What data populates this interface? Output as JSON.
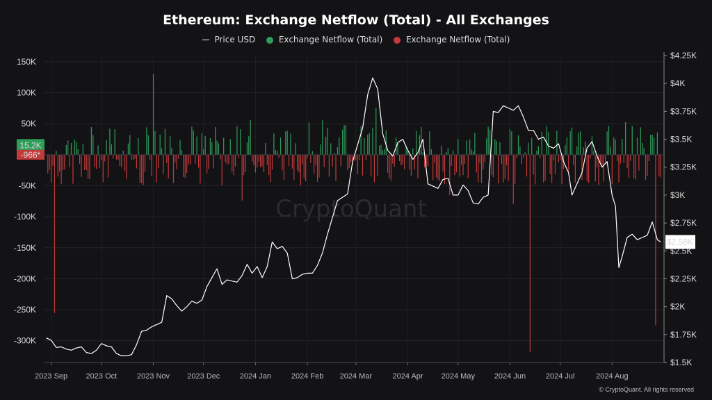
{
  "title": "Ethereum: Exchange Netflow (Total) - All Exchanges",
  "legend": [
    {
      "label": "Price USD",
      "marker": "line",
      "color": "#ffffff"
    },
    {
      "label": "Exchange Netflow (Total)",
      "marker": "dot",
      "color": "#2e9e58"
    },
    {
      "label": "Exchange Netflow (Total)",
      "marker": "dot",
      "color": "#c43a3a"
    }
  ],
  "watermark": "CryptoQuant",
  "copyright": "© CryptoQuant. All rights reserved",
  "chart_data": {
    "type": "bar+line",
    "x_ticks": [
      "2023 Sep",
      "2023 Oct",
      "2023 Nov",
      "2023 Dec",
      "2024 Jan",
      "2024 Feb",
      "2024 Mar",
      "2024 Apr",
      "2024 May",
      "2024 Jun",
      "2024 Jul",
      "2024 Aug"
    ],
    "left_axis": {
      "label": "Exchange Netflow (Total)",
      "ticks": [
        "150K",
        "100K",
        "50K",
        "0",
        "-50K",
        "-100K",
        "-150K",
        "-200K",
        "-250K",
        "-300K"
      ],
      "ylim": [
        -335000,
        160000
      ]
    },
    "right_axis": {
      "label": "Price USD",
      "ticks": [
        "$4.25K",
        "$4K",
        "$3.75K",
        "$3.5K",
        "$3.25K",
        "$3K",
        "$2.75K",
        "$2.5K",
        "$2.25K",
        "$2K",
        "$1.75K",
        "$1.5K"
      ],
      "ylim": [
        1500,
        4250
      ]
    },
    "last_value_labels": {
      "netflow_positive": "15.2K",
      "netflow_negative": "-966*",
      "price": "$2.58K"
    },
    "grid": true,
    "series": [
      {
        "name": "Price USD",
        "kind": "line",
        "color": "#ffffff",
        "points": [
          [
            "2023-08-29",
            1720
          ],
          [
            "2023-09-01",
            1700
          ],
          [
            "2023-09-04",
            1635
          ],
          [
            "2023-09-07",
            1640
          ],
          [
            "2023-09-10",
            1620
          ],
          [
            "2023-09-13",
            1610
          ],
          [
            "2023-09-16",
            1630
          ],
          [
            "2023-09-19",
            1640
          ],
          [
            "2023-09-22",
            1590
          ],
          [
            "2023-09-25",
            1580
          ],
          [
            "2023-09-28",
            1610
          ],
          [
            "2023-10-01",
            1670
          ],
          [
            "2023-10-04",
            1650
          ],
          [
            "2023-10-07",
            1640
          ],
          [
            "2023-10-10",
            1580
          ],
          [
            "2023-10-13",
            1560
          ],
          [
            "2023-10-16",
            1560
          ],
          [
            "2023-10-19",
            1570
          ],
          [
            "2023-10-22",
            1660
          ],
          [
            "2023-10-25",
            1780
          ],
          [
            "2023-10-28",
            1790
          ],
          [
            "2023-10-31",
            1820
          ],
          [
            "2023-11-03",
            1840
          ],
          [
            "2023-11-06",
            1860
          ],
          [
            "2023-11-09",
            2100
          ],
          [
            "2023-11-12",
            2070
          ],
          [
            "2023-11-15",
            2010
          ],
          [
            "2023-11-18",
            1960
          ],
          [
            "2023-11-21",
            2000
          ],
          [
            "2023-11-24",
            2050
          ],
          [
            "2023-11-27",
            2030
          ],
          [
            "2023-11-30",
            2060
          ],
          [
            "2023-12-03",
            2180
          ],
          [
            "2023-12-06",
            2260
          ],
          [
            "2023-12-09",
            2340
          ],
          [
            "2023-12-12",
            2200
          ],
          [
            "2023-12-15",
            2240
          ],
          [
            "2023-12-18",
            2230
          ],
          [
            "2023-12-21",
            2220
          ],
          [
            "2023-12-24",
            2280
          ],
          [
            "2023-12-27",
            2380
          ],
          [
            "2023-12-30",
            2300
          ],
          [
            "2024-01-02",
            2360
          ],
          [
            "2024-01-05",
            2260
          ],
          [
            "2024-01-08",
            2360
          ],
          [
            "2024-01-11",
            2580
          ],
          [
            "2024-01-14",
            2520
          ],
          [
            "2024-01-17",
            2540
          ],
          [
            "2024-01-20",
            2480
          ],
          [
            "2024-01-23",
            2250
          ],
          [
            "2024-01-26",
            2260
          ],
          [
            "2024-01-29",
            2290
          ],
          [
            "2024-02-01",
            2300
          ],
          [
            "2024-02-04",
            2300
          ],
          [
            "2024-02-07",
            2370
          ],
          [
            "2024-02-10",
            2480
          ],
          [
            "2024-02-13",
            2650
          ],
          [
            "2024-02-16",
            2800
          ],
          [
            "2024-02-19",
            2950
          ],
          [
            "2024-02-22",
            2980
          ],
          [
            "2024-02-25",
            3010
          ],
          [
            "2024-02-28",
            3300
          ],
          [
            "2024-03-02",
            3450
          ],
          [
            "2024-03-05",
            3600
          ],
          [
            "2024-03-08",
            3900
          ],
          [
            "2024-03-11",
            4050
          ],
          [
            "2024-03-14",
            3950
          ],
          [
            "2024-03-17",
            3550
          ],
          [
            "2024-03-20",
            3400
          ],
          [
            "2024-03-23",
            3350
          ],
          [
            "2024-03-26",
            3470
          ],
          [
            "2024-03-29",
            3500
          ],
          [
            "2024-04-01",
            3400
          ],
          [
            "2024-04-04",
            3320
          ],
          [
            "2024-04-07",
            3380
          ],
          [
            "2024-04-10",
            3500
          ],
          [
            "2024-04-13",
            3100
          ],
          [
            "2024-04-16",
            3080
          ],
          [
            "2024-04-19",
            3060
          ],
          [
            "2024-04-22",
            3140
          ],
          [
            "2024-04-25",
            3150
          ],
          [
            "2024-04-28",
            3000
          ],
          [
            "2024-05-01",
            3000
          ],
          [
            "2024-05-04",
            3090
          ],
          [
            "2024-05-07",
            3040
          ],
          [
            "2024-05-10",
            2930
          ],
          [
            "2024-05-13",
            2920
          ],
          [
            "2024-05-16",
            2980
          ],
          [
            "2024-05-19",
            3000
          ],
          [
            "2024-05-22",
            3750
          ],
          [
            "2024-05-25",
            3740
          ],
          [
            "2024-05-28",
            3800
          ],
          [
            "2024-05-31",
            3780
          ],
          [
            "2024-06-03",
            3760
          ],
          [
            "2024-06-06",
            3800
          ],
          [
            "2024-06-09",
            3700
          ],
          [
            "2024-06-12",
            3580
          ],
          [
            "2024-06-15",
            3580
          ],
          [
            "2024-06-18",
            3500
          ],
          [
            "2024-06-21",
            3520
          ],
          [
            "2024-06-24",
            3440
          ],
          [
            "2024-06-27",
            3420
          ],
          [
            "2024-06-30",
            3460
          ],
          [
            "2024-07-03",
            3300
          ],
          [
            "2024-07-06",
            3200
          ],
          [
            "2024-07-08",
            3000
          ],
          [
            "2024-07-11",
            3100
          ],
          [
            "2024-07-14",
            3200
          ],
          [
            "2024-07-17",
            3420
          ],
          [
            "2024-07-20",
            3480
          ],
          [
            "2024-07-23",
            3350
          ],
          [
            "2024-07-26",
            3250
          ],
          [
            "2024-07-29",
            3300
          ],
          [
            "2024-08-01",
            3000
          ],
          [
            "2024-08-03",
            2900
          ],
          [
            "2024-08-05",
            2350
          ],
          [
            "2024-08-07",
            2450
          ],
          [
            "2024-08-10",
            2620
          ],
          [
            "2024-08-13",
            2650
          ],
          [
            "2024-08-16",
            2600
          ],
          [
            "2024-08-19",
            2620
          ],
          [
            "2024-08-22",
            2640
          ],
          [
            "2024-08-25",
            2760
          ],
          [
            "2024-08-28",
            2600
          ],
          [
            "2024-08-30",
            2580
          ]
        ]
      },
      {
        "name": "Exchange Netflow (Total)",
        "kind": "bar",
        "positive_color": "#2e9e58",
        "negative_color": "#c43a3a",
        "notable_values": [
          {
            "x": "2023-09-03",
            "y": -255000
          },
          {
            "x": "2023-11-01",
            "y": 130000
          },
          {
            "x": "2023-12-26",
            "y": -28000
          },
          {
            "x": "2024-06-13",
            "y": -318000
          },
          {
            "x": "2024-08-27",
            "y": -275000
          }
        ]
      }
    ]
  }
}
